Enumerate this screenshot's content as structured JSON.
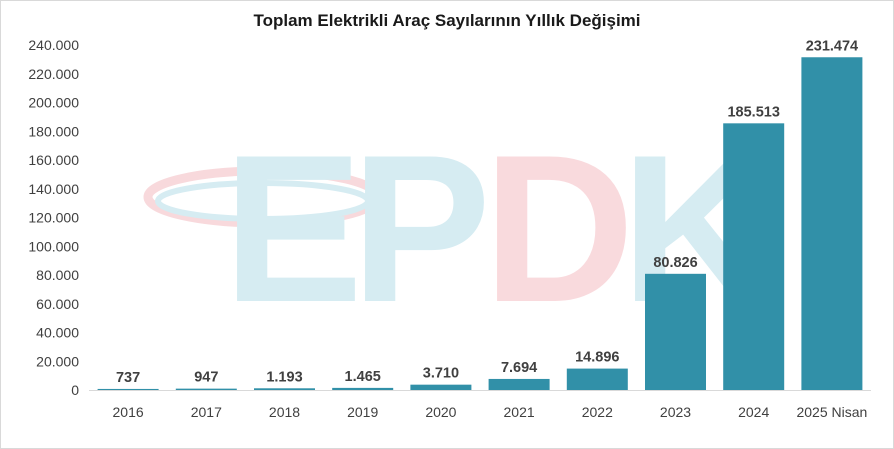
{
  "chart_data": {
    "type": "bar",
    "title": "Toplam Elektrikli Araç Sayılarının Yıllık Değişimi",
    "xlabel": "",
    "ylabel": "",
    "categories": [
      "2016",
      "2017",
      "2018",
      "2019",
      "2020",
      "2021",
      "2022",
      "2023",
      "2024",
      "2025 Nisan"
    ],
    "values": [
      737,
      947,
      1193,
      1465,
      3710,
      7694,
      14896,
      80826,
      185513,
      231474
    ],
    "data_labels": [
      "737",
      "947",
      "1.193",
      "1.465",
      "3.710",
      "7.694",
      "14.896",
      "80.826",
      "185.513",
      "231.474"
    ],
    "ylim": [
      0,
      240000
    ],
    "y_ticks": [
      0,
      20000,
      40000,
      60000,
      80000,
      100000,
      120000,
      140000,
      160000,
      180000,
      200000,
      220000,
      240000
    ],
    "y_tick_labels": [
      "0",
      "20.000",
      "40.000",
      "60.000",
      "80.000",
      "100.000",
      "120.000",
      "140.000",
      "160.000",
      "180.000",
      "200.000",
      "220.000",
      "240.000"
    ],
    "grid": false,
    "legend": "none",
    "bar_color": "#3190a8",
    "watermark": {
      "text": "EPDK",
      "colors": {
        "E": "#cfe9f0",
        "P": "#cfe9f0",
        "D": "#f9d4d8",
        "K": "#cfe9f0"
      }
    }
  }
}
